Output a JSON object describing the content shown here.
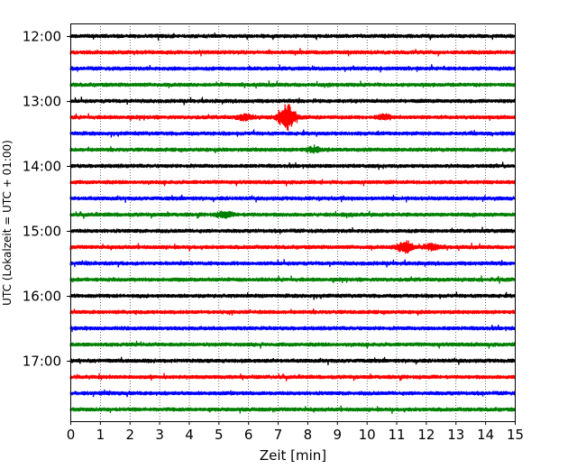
{
  "chart_data": {
    "type": "line",
    "title": "",
    "xlabel": "Zeit  [min]",
    "ylabel": "UTC (Lokalzeit = UTC + 01:00)",
    "xlim": [
      0,
      15
    ],
    "x_ticks": [
      "0",
      "1",
      "2",
      "3",
      "4",
      "5",
      "6",
      "7",
      "8",
      "9",
      "10",
      "11",
      "12",
      "13",
      "14",
      "15"
    ],
    "y_ticks": [
      "12:00",
      "13:00",
      "14:00",
      "15:00",
      "16:00",
      "17:00"
    ],
    "grid": "vertical dotted",
    "trace_interval_minutes": 15,
    "colors": [
      "#000000",
      "#ff0000",
      "#0000ff",
      "#008000"
    ],
    "traces": [
      {
        "start": "12:00",
        "color": "#000000"
      },
      {
        "start": "12:15",
        "color": "#ff0000"
      },
      {
        "start": "12:30",
        "color": "#0000ff"
      },
      {
        "start": "12:45",
        "color": "#008000"
      },
      {
        "start": "13:00",
        "color": "#000000"
      },
      {
        "start": "13:15",
        "color": "#ff0000",
        "events": [
          {
            "t": 7.3,
            "amp": 1.0
          },
          {
            "t": 5.9,
            "amp": 0.2
          },
          {
            "t": 10.6,
            "amp": 0.15
          }
        ]
      },
      {
        "start": "13:30",
        "color": "#0000ff"
      },
      {
        "start": "13:45",
        "color": "#008000",
        "events": [
          {
            "t": 8.2,
            "amp": 0.15
          }
        ]
      },
      {
        "start": "14:00",
        "color": "#000000"
      },
      {
        "start": "14:15",
        "color": "#ff0000"
      },
      {
        "start": "14:30",
        "color": "#0000ff"
      },
      {
        "start": "14:45",
        "color": "#008000",
        "events": [
          {
            "t": 5.2,
            "amp": 0.2
          }
        ]
      },
      {
        "start": "15:00",
        "color": "#000000"
      },
      {
        "start": "15:15",
        "color": "#ff0000",
        "events": [
          {
            "t": 11.3,
            "amp": 0.45
          },
          {
            "t": 12.2,
            "amp": 0.2
          }
        ]
      },
      {
        "start": "15:30",
        "color": "#0000ff"
      },
      {
        "start": "15:45",
        "color": "#008000"
      },
      {
        "start": "16:00",
        "color": "#000000"
      },
      {
        "start": "16:15",
        "color": "#ff0000"
      },
      {
        "start": "16:30",
        "color": "#0000ff"
      },
      {
        "start": "16:45",
        "color": "#008000"
      },
      {
        "start": "17:00",
        "color": "#000000"
      },
      {
        "start": "17:15",
        "color": "#ff0000"
      },
      {
        "start": "17:30",
        "color": "#0000ff"
      },
      {
        "start": "17:45",
        "color": "#008000"
      }
    ]
  }
}
